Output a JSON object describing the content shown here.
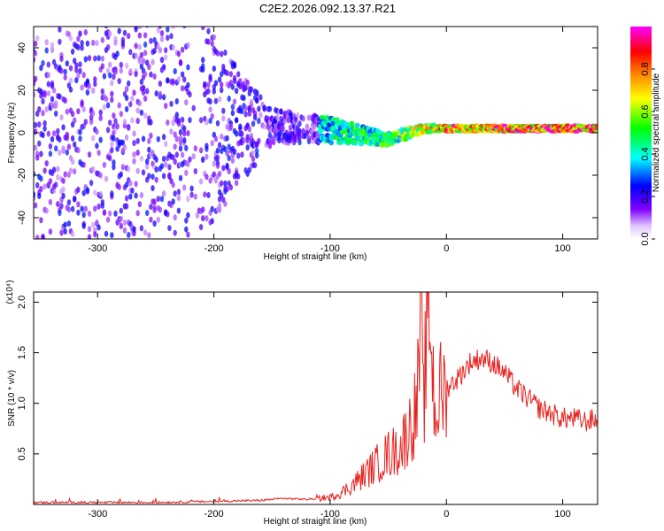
{
  "title": "C2E2.2026.092.13.37.R21",
  "chart_data": [
    {
      "type": "heatmap",
      "xlabel": "Height of straight line (km)",
      "ylabel": "Frequency (Hz)",
      "xlim": [
        -355,
        130
      ],
      "ylim": [
        -50,
        50
      ],
      "xticks": [
        -300,
        -200,
        -100,
        0,
        100
      ],
      "yticks": [
        -40,
        -20,
        0,
        20,
        40
      ],
      "colorbar": {
        "label": "Normalized spectral amplitude",
        "range": [
          0,
          1
        ],
        "ticks": [
          "0.0",
          "0.2",
          "0.4",
          "0.6",
          "0.8"
        ],
        "colormap": [
          "#ffffff",
          "#8000ff",
          "#0000ff",
          "#00ffff",
          "#00ff00",
          "#ffff00",
          "#ff8000",
          "#ff0000",
          "#ff00ff"
        ]
      },
      "description_profile": [
        {
          "x": -355,
          "center_hz": 0,
          "spread_hz": 50,
          "amplitude": 0.12
        },
        {
          "x": -210,
          "center_hz": 2,
          "spread_hz": 50,
          "amplitude": 0.15
        },
        {
          "x": -150,
          "center_hz": 3,
          "spread_hz": 8,
          "amplitude": 0.35
        },
        {
          "x": -100,
          "center_hz": 1,
          "spread_hz": 6,
          "amplitude": 0.45
        },
        {
          "x": -50,
          "center_hz": -3,
          "spread_hz": 3,
          "amplitude": 0.55
        },
        {
          "x": -20,
          "center_hz": 2,
          "spread_hz": 2,
          "amplitude": 0.7
        },
        {
          "x": 0,
          "center_hz": 2,
          "spread_hz": 1.5,
          "amplitude": 0.85
        },
        {
          "x": 130,
          "center_hz": 2,
          "spread_hz": 1.5,
          "amplitude": 0.95
        }
      ]
    },
    {
      "type": "line",
      "xlabel": "Height of straight line (km)",
      "ylabel": "SNR (10 * v/v)",
      "ylabel_exponent": "(x10⁴)",
      "xlim": [
        -355,
        130
      ],
      "ylim": [
        0,
        2.1
      ],
      "xticks": [
        -300,
        -200,
        -100,
        0,
        100
      ],
      "yticks": [
        0.5,
        1.0,
        1.5,
        2.0
      ],
      "ytick_labels": [
        "0.5",
        "1.0",
        "1.5",
        "2.0"
      ],
      "color": "#e8221e",
      "series": [
        {
          "x": [
            -355,
            -300,
            -250,
            -200,
            -160,
            -140,
            -120,
            -100,
            -90,
            -80,
            -70,
            -60,
            -50,
            -40,
            -30,
            -25,
            -22,
            -20,
            -15,
            -10,
            -5,
            0,
            10,
            20,
            30,
            40,
            50,
            60,
            70,
            80,
            90,
            100,
            110,
            120,
            130
          ],
          "y": [
            0.02,
            0.02,
            0.02,
            0.03,
            0.04,
            0.06,
            0.05,
            0.07,
            0.12,
            0.2,
            0.3,
            0.4,
            0.5,
            0.55,
            0.8,
            1.0,
            1.85,
            0.9,
            2.1,
            0.9,
            1.1,
            1.15,
            1.25,
            1.4,
            1.45,
            1.4,
            1.3,
            1.15,
            1.05,
            0.95,
            0.9,
            0.85,
            0.85,
            0.82,
            0.85
          ]
        }
      ]
    }
  ]
}
